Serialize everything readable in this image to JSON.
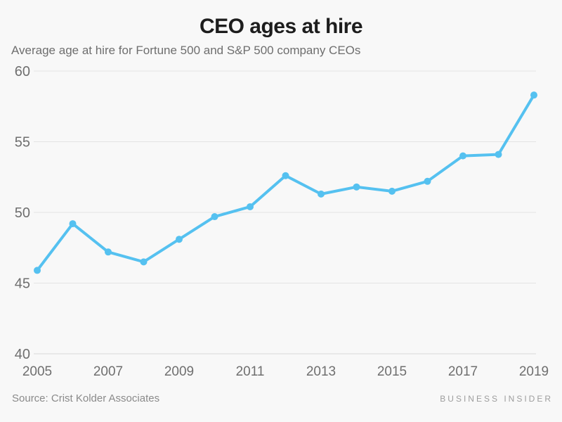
{
  "chart_data": {
    "type": "line",
    "title": "CEO ages at hire",
    "subtitle": "Average age at hire for Fortune 500 and S&P 500 company CEOs",
    "x": [
      2005,
      2006,
      2007,
      2008,
      2009,
      2010,
      2011,
      2012,
      2013,
      2014,
      2015,
      2016,
      2017,
      2018,
      2019
    ],
    "series": [
      {
        "name": "Average age at hire",
        "values": [
          45.9,
          49.2,
          47.2,
          46.5,
          48.1,
          49.7,
          50.4,
          52.6,
          51.3,
          51.8,
          51.5,
          52.2,
          54.0,
          54.1,
          58.3
        ]
      }
    ],
    "xlabel": "",
    "ylabel": "",
    "ylim": [
      40,
      60
    ],
    "y_ticks": [
      60,
      55,
      50,
      45,
      40
    ],
    "x_ticks": [
      2005,
      2007,
      2009,
      2011,
      2013,
      2015,
      2017,
      2019
    ],
    "grid": "horizontal",
    "legend": "none",
    "line_color": "#55C1F0",
    "marker": "circle"
  },
  "footer": {
    "source": "Source: Crist Kolder Associates",
    "brand": "BUSINESS INSIDER"
  },
  "colors": {
    "background": "#f8f8f8",
    "gridline": "#e3e3e3",
    "baseline": "#d9d9d9",
    "axis_text": "#6f6f6f",
    "title_text": "#1d1d1d",
    "subtitle_text": "#6e6e6e"
  }
}
